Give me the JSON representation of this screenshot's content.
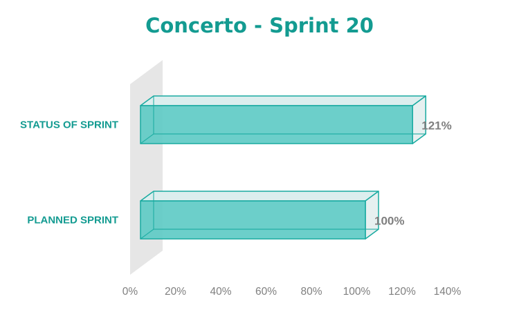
{
  "chart_data": {
    "type": "bar",
    "orientation": "horizontal",
    "style": "3d",
    "title": "Concerto - Sprint 20",
    "categories": [
      "STATUS OF SPRINT",
      "PLANNED SPRINT"
    ],
    "values": [
      1.21,
      1.0
    ],
    "value_labels": [
      "121%",
      "100%"
    ],
    "xlim": [
      0,
      1.4
    ],
    "x_ticks": [
      "0%",
      "20%",
      "40%",
      "60%",
      "80%",
      "100%",
      "120%",
      "140%"
    ],
    "xlabel": "",
    "ylabel": "",
    "grid": false,
    "legend": "none"
  },
  "colors": {
    "title": "#139b91",
    "category_label": "#139b91",
    "value_label": "#7f7f7f",
    "tick_label": "#7f7f7f",
    "bar_fill": "#5fcbc6",
    "bar_top": "#dceeee",
    "bar_end": "#e6f0f0",
    "bar_edge": "#18aaa0",
    "back_wall": "#e6e6e6"
  }
}
